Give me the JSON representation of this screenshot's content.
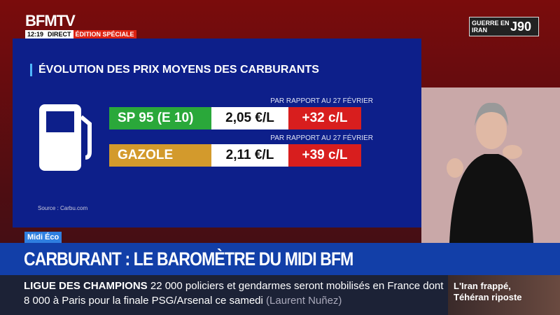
{
  "header": {
    "logo": "BFMTV",
    "time": "12:19",
    "live": "DIRECT",
    "edition": "ÉDITION SPÉCIALE",
    "badge": {
      "title": "GUERRE EN IRAN",
      "day": "J90"
    }
  },
  "panel": {
    "title": "ÉVOLUTION DES PRIX MOYENS DES CARBURANTS",
    "rows": [
      {
        "note": "PAR RAPPORT AU 27 FÉVRIER",
        "fuel": "SP 95 (E 10)",
        "price": "2,05 €/L",
        "change": "+32 c/L"
      },
      {
        "note": "PAR RAPPORT AU 27 FÉVRIER",
        "fuel": "GAZOLE",
        "price": "2,11 €/L",
        "change": "+39 c/L"
      }
    ],
    "source": "Source : Carbu.com"
  },
  "lower_third": {
    "tag": "Midi Éco",
    "headline": "CARBURANT : LE BAROMÈTRE DU MIDI BFM"
  },
  "ticker": {
    "topic": "LIGUE DES CHAMPIONS",
    "text": "22 000 policiers et gendarmes seront mobilisés en France dont 8 000 à Paris pour la finale PSG/Arsenal ce samedi",
    "attribution": "(Laurent Nuñez)"
  },
  "promo": {
    "text": "L'Iran frappé, Téhéran riposte"
  }
}
